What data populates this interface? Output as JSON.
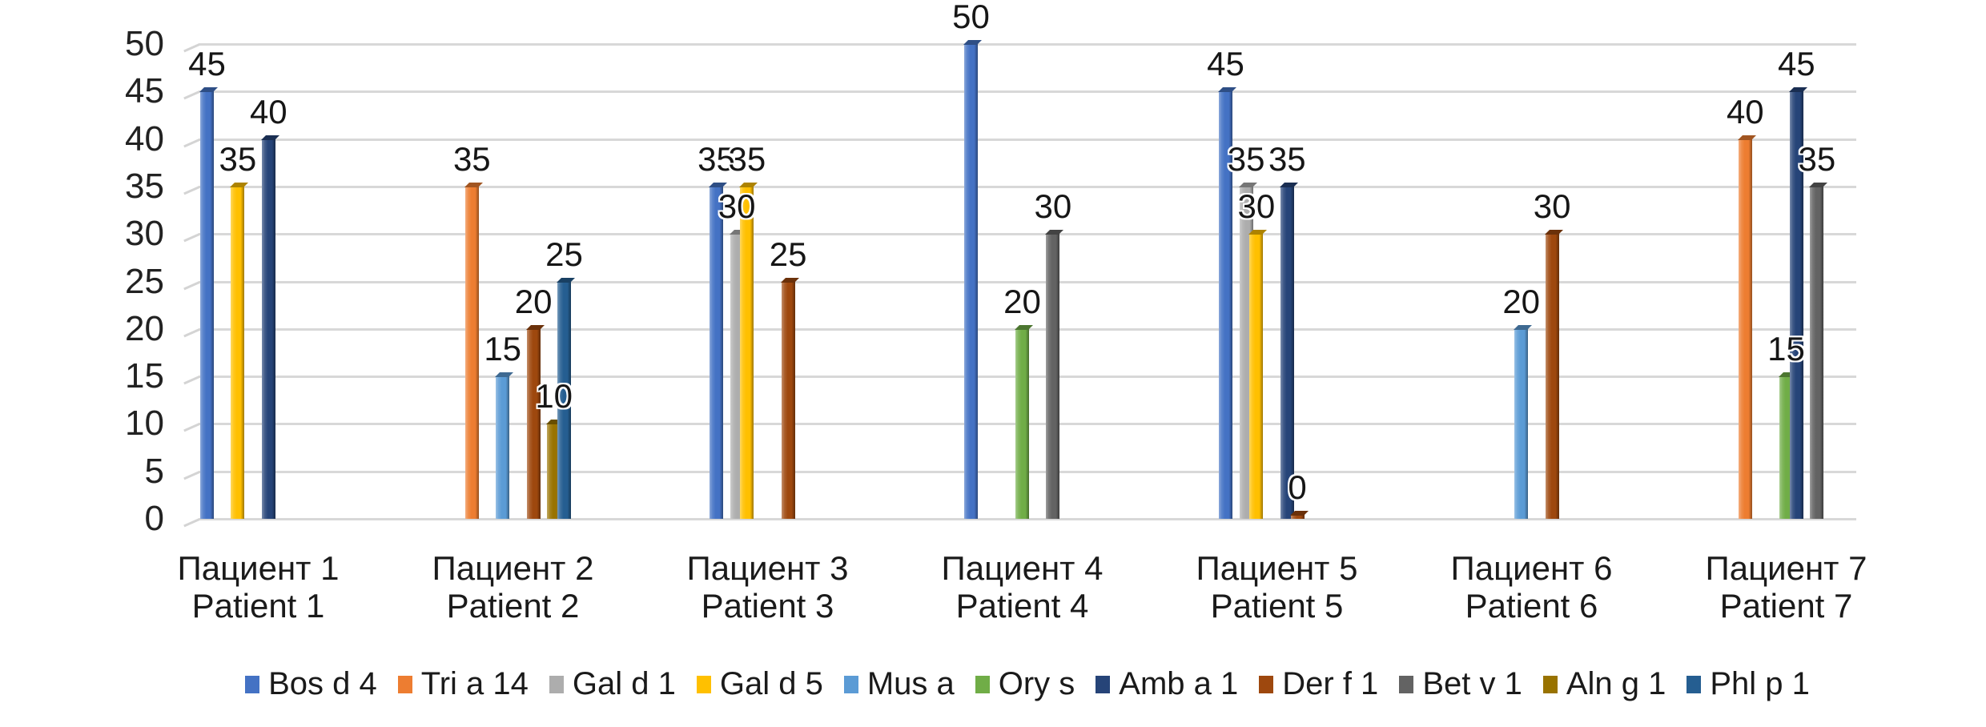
{
  "chart_data": {
    "type": "bar",
    "title": "",
    "xlabel": "",
    "ylabel": "",
    "ylim": [
      0,
      50
    ],
    "ytick_step": 5,
    "yticks": [
      0,
      5,
      10,
      15,
      20,
      25,
      30,
      35,
      40,
      45,
      50
    ],
    "grid": true,
    "legend_position": "bottom",
    "categories": [
      {
        "ru": "Пациент 1",
        "en": "Patient 1"
      },
      {
        "ru": "Пациент 2",
        "en": "Patient 2"
      },
      {
        "ru": "Пациент 3",
        "en": "Patient 3"
      },
      {
        "ru": "Пациент 4",
        "en": "Patient 4"
      },
      {
        "ru": "Пациент 5",
        "en": "Patient 5"
      },
      {
        "ru": "Пациент 6",
        "en": "Patient 6"
      },
      {
        "ru": "Пациент 7",
        "en": "Patient 7"
      }
    ],
    "series": [
      {
        "name": "Bos d 4",
        "color": "#4472C4",
        "values": [
          45,
          null,
          35,
          50,
          45,
          null,
          null
        ]
      },
      {
        "name": "Tri a 14",
        "color": "#ED7D31",
        "values": [
          null,
          35,
          null,
          null,
          null,
          null,
          40
        ]
      },
      {
        "name": "Gal d 1",
        "color": "#ADADAD",
        "values": [
          null,
          null,
          30,
          null,
          35,
          null,
          null
        ]
      },
      {
        "name": "Gal d 5",
        "color": "#FFC000",
        "values": [
          35,
          null,
          35,
          null,
          30,
          null,
          null
        ]
      },
      {
        "name": "Mus a",
        "color": "#5B9BD5",
        "values": [
          null,
          15,
          null,
          null,
          null,
          20,
          null
        ]
      },
      {
        "name": "Ory s",
        "color": "#70AD47",
        "values": [
          null,
          null,
          null,
          20,
          null,
          null,
          15
        ]
      },
      {
        "name": "Amb a 1",
        "color": "#264478",
        "values": [
          40,
          null,
          null,
          null,
          35,
          null,
          45
        ]
      },
      {
        "name": "Der f 1",
        "color": "#9E480E",
        "values": [
          null,
          20,
          25,
          null,
          0,
          30,
          null
        ]
      },
      {
        "name": "Bet v 1",
        "color": "#636363",
        "values": [
          null,
          null,
          null,
          30,
          null,
          null,
          35
        ]
      },
      {
        "name": "Aln g 1",
        "color": "#997300",
        "values": [
          null,
          10,
          null,
          null,
          null,
          null,
          null
        ]
      },
      {
        "name": "Phl p 1",
        "color": "#255E91",
        "values": [
          null,
          25,
          null,
          null,
          null,
          null,
          null
        ]
      }
    ]
  }
}
